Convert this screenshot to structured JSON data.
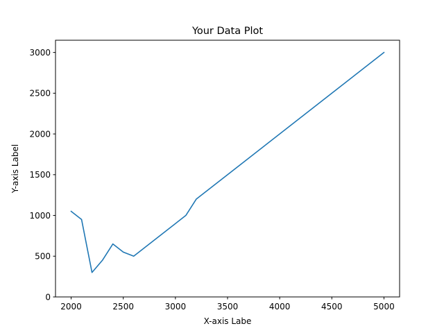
{
  "chart_data": {
    "type": "line",
    "title": "Your Data Plot",
    "xlabel": "X-axis Labe",
    "ylabel": "Y-axis Label",
    "xlim": [
      1850,
      5150
    ],
    "ylim": [
      0,
      3150
    ],
    "x_ticks": [
      2000,
      2500,
      3000,
      3500,
      4000,
      4500,
      5000
    ],
    "y_ticks": [
      0,
      500,
      1000,
      1500,
      2000,
      2500,
      3000
    ],
    "grid": false,
    "series": [
      {
        "color": "#1f77b4",
        "x": [
          2000,
          2100,
          2200,
          2300,
          2400,
          2500,
          2600,
          3100,
          3200,
          5000
        ],
        "y": [
          1050,
          950,
          300,
          450,
          650,
          550,
          500,
          1000,
          1200,
          3000
        ]
      }
    ]
  }
}
